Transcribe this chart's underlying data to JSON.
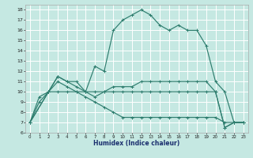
{
  "xlabel": "Humidex (Indice chaleur)",
  "xlim": [
    -0.5,
    23.5
  ],
  "ylim": [
    6,
    18.5
  ],
  "xticks": [
    0,
    1,
    2,
    3,
    4,
    5,
    6,
    7,
    8,
    9,
    10,
    11,
    12,
    13,
    14,
    15,
    16,
    17,
    18,
    19,
    20,
    21,
    22,
    23
  ],
  "yticks": [
    6,
    7,
    8,
    9,
    10,
    11,
    12,
    13,
    14,
    15,
    16,
    17,
    18
  ],
  "bg_color": "#c5e8e2",
  "grid_color": "#ffffff",
  "line_color": "#2e7d6e",
  "line1_x": [
    0,
    1,
    2,
    3,
    4,
    5,
    6,
    7,
    8,
    9,
    10,
    11,
    12,
    13,
    14,
    15,
    16,
    17,
    18,
    19,
    20,
    21,
    22,
    23
  ],
  "line1_y": [
    7,
    9.5,
    10,
    11.5,
    11,
    10.5,
    10,
    12.5,
    12,
    16,
    17,
    17.5,
    18,
    17.5,
    16.5,
    16,
    16.5,
    16,
    16,
    14.5,
    11,
    10,
    7,
    7
  ],
  "line2_x": [
    0,
    2,
    3,
    4,
    5,
    6,
    7,
    8,
    9,
    10,
    11,
    12,
    13,
    14,
    15,
    16,
    17,
    18,
    19,
    20,
    21,
    22,
    23
  ],
  "line2_y": [
    7,
    10,
    11.5,
    11,
    11,
    10,
    10,
    10,
    10.5,
    10.5,
    10.5,
    11,
    11,
    11,
    11,
    11,
    11,
    11,
    11,
    10,
    6.5,
    7,
    7
  ],
  "line3_x": [
    0,
    2,
    3,
    4,
    5,
    6,
    7,
    8,
    9,
    10,
    11,
    12,
    13,
    14,
    15,
    16,
    17,
    18,
    19,
    20,
    21,
    22,
    23
  ],
  "line3_y": [
    7,
    10,
    10,
    10,
    10,
    10,
    9.5,
    10,
    10,
    10,
    10,
    10,
    10,
    10,
    10,
    10,
    10,
    10,
    10,
    10,
    6.5,
    7,
    7
  ],
  "line4_x": [
    0,
    1,
    2,
    3,
    4,
    5,
    6,
    7,
    8,
    9,
    10,
    11,
    12,
    13,
    14,
    15,
    16,
    17,
    18,
    19,
    20,
    21,
    22,
    23
  ],
  "line4_y": [
    7,
    9,
    10,
    11,
    10.5,
    10,
    9.5,
    9,
    8.5,
    8,
    7.5,
    7.5,
    7.5,
    7.5,
    7.5,
    7.5,
    7.5,
    7.5,
    7.5,
    7.5,
    7.5,
    7,
    7,
    7
  ]
}
